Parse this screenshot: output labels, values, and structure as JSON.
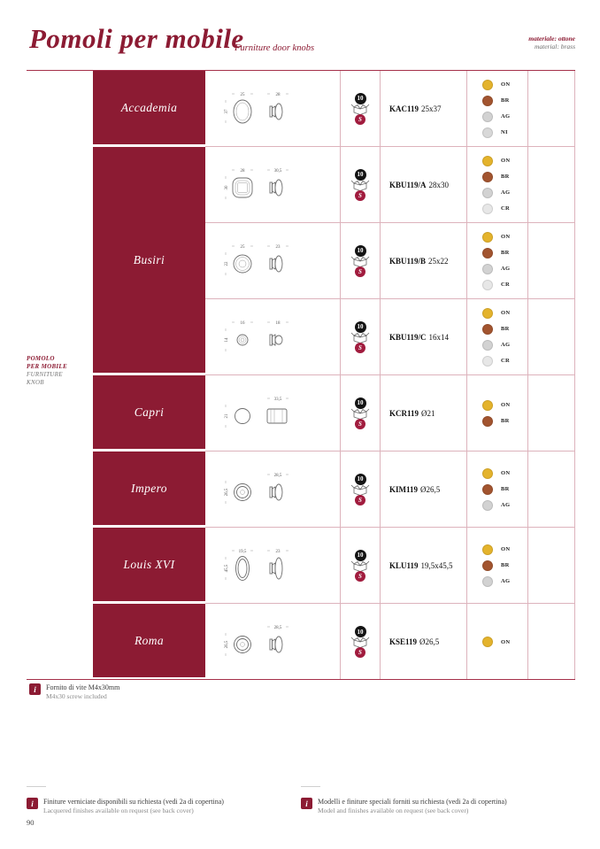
{
  "header": {
    "title": "Pomoli per mobile",
    "subtitle": "Furniture door knobs",
    "material_line1": "materiale: ottone",
    "material_line2": "material: brass"
  },
  "sidebar": {
    "line1": "POMOLO",
    "line2": "PER MOBILE",
    "line3": "FURNITURE",
    "line4": "KNOB"
  },
  "packaging": {
    "quantity": "10",
    "screw_label": "S",
    "box_icon": "open-box-icon"
  },
  "finish_colors": {
    "ON": "#E4B32C",
    "BR": "#A2542F",
    "AG": "#D2D2D2",
    "NI": "#D8D8D8",
    "CR": "#E7E7E7"
  },
  "groups": [
    {
      "name": "Accademia",
      "variants": [
        {
          "code": "KAC119",
          "size": "25x37",
          "shape": "oval-knob",
          "dims": {
            "front_w": "25",
            "front_h": "37",
            "side_w": "28"
          },
          "finishes": [
            "ON",
            "BR",
            "AG",
            "NI"
          ]
        }
      ]
    },
    {
      "name": "Busiri",
      "variants": [
        {
          "code": "KBU119/A",
          "size": "28x30",
          "shape": "square-knob",
          "dims": {
            "front_w": "28",
            "front_h": "30",
            "side_w": "30,5"
          },
          "finishes": [
            "ON",
            "BR",
            "AG",
            "CR"
          ]
        },
        {
          "code": "KBU119/B",
          "size": "25x22",
          "shape": "faceted-round-knob",
          "dims": {
            "front_w": "25",
            "front_h": "22",
            "side_w": "23"
          },
          "finishes": [
            "ON",
            "BR",
            "AG",
            "CR"
          ]
        },
        {
          "code": "KBU119/C",
          "size": "16x14",
          "shape": "faceted-round-knob-small",
          "dims": {
            "front_w": "16",
            "front_h": "14",
            "side_w": "18"
          },
          "finishes": [
            "ON",
            "BR",
            "AG",
            "CR"
          ]
        }
      ]
    },
    {
      "name": "Capri",
      "variants": [
        {
          "code": "KCR119",
          "size": "Ø21",
          "shape": "ring-knob",
          "dims": {
            "front_h": "21",
            "side_w": "33,5"
          },
          "finishes": [
            "ON",
            "BR"
          ]
        }
      ]
    },
    {
      "name": "Impero",
      "variants": [
        {
          "code": "KIM119",
          "size": "Ø26,5",
          "shape": "round-knob",
          "dims": {
            "front_h": "26,5",
            "side_w": "28,5"
          },
          "finishes": [
            "ON",
            "BR",
            "AG"
          ]
        }
      ]
    },
    {
      "name": "Louis XVI",
      "variants": [
        {
          "code": "KLU119",
          "size": "19,5x45,5",
          "shape": "oval-knob-tall",
          "dims": {
            "front_w": "19,5",
            "front_h": "45,5",
            "side_w": "23"
          },
          "finishes": [
            "ON",
            "BR",
            "AG"
          ]
        }
      ]
    },
    {
      "name": "Roma",
      "variants": [
        {
          "code": "KSE119",
          "size": "Ø26,5",
          "shape": "round-knob",
          "dims": {
            "front_h": "26,5",
            "side_w": "28,5"
          },
          "finishes": [
            "ON"
          ]
        }
      ]
    }
  ],
  "table_note": {
    "line1": "Fornito di vite M4x30mm",
    "line2": "M4x30 screw included"
  },
  "footer_notes": [
    {
      "line1": "Finiture verniciate disponibili su richiesta (vedi 2a di copertina)",
      "line2": "Lacquered finishes available on request (see back cover)"
    },
    {
      "line1": "Modelli e finiture speciali forniti su richiesta (vedi 2a di copertina)",
      "line2": "Model and finishes available on request (see back cover)"
    }
  ],
  "page_number": "90",
  "colors": {
    "maroon": "#8C1B33",
    "grid_line": "#DDB3BC"
  }
}
